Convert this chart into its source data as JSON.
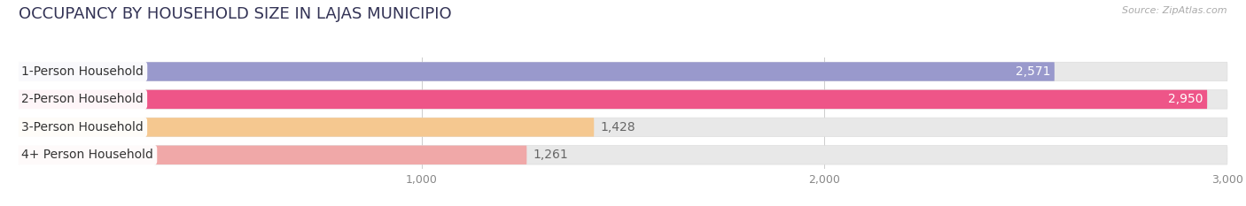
{
  "title": "OCCUPANCY BY HOUSEHOLD SIZE IN LAJAS MUNICIPIO",
  "source": "Source: ZipAtlas.com",
  "categories": [
    "1-Person Household",
    "2-Person Household",
    "3-Person Household",
    "4+ Person Household"
  ],
  "values": [
    2571,
    2950,
    1428,
    1261
  ],
  "bar_colors": [
    "#9999cc",
    "#ee5588",
    "#f5c890",
    "#f0a8a8"
  ],
  "value_inside": [
    true,
    true,
    false,
    false
  ],
  "xlim_max": 3000,
  "xticks": [
    1000,
    2000,
    3000
  ],
  "xtick_labels": [
    "1,000",
    "2,000",
    "3,000"
  ],
  "background_color": "#ffffff",
  "bar_bg_color": "#e8e8e8",
  "bar_border_color": "#dddddd",
  "title_fontsize": 13,
  "label_fontsize": 10,
  "value_fontsize": 10,
  "title_color": "#333355",
  "label_color": "#333333",
  "value_color_inside": "#ffffff",
  "value_color_outside": "#666666",
  "source_color": "#aaaaaa"
}
